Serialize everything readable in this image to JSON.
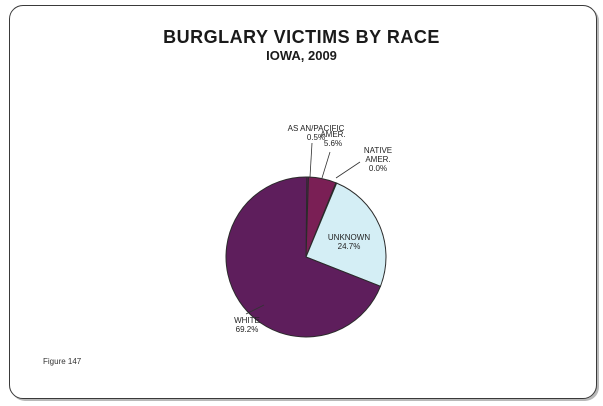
{
  "chart_data": {
    "type": "pie",
    "title": "BURGLARY VICTIMS BY RACE",
    "subtitle": "IOWA, 2009",
    "figure_label": "Figure 147",
    "slices": [
      {
        "label_lines": [
          "AS AN/PACIFIC",
          "0.5%"
        ],
        "value": 0.5,
        "color": "#5a1a55"
      },
      {
        "label_lines": [
          "AMER.",
          "5.6%"
        ],
        "value": 5.6,
        "color": "#7a1f55"
      },
      {
        "label_lines": [
          "NATIVE",
          "AMER.",
          "0.0%"
        ],
        "value": 0.0,
        "color": "#c4b4d6"
      },
      {
        "label_lines": [
          "UNKNOWN",
          "24.7%"
        ],
        "value": 24.7,
        "color": "#d4eef5"
      },
      {
        "label_lines": [
          "WHITE",
          "69.2%"
        ],
        "value": 69.2,
        "color": "#5e1e5c"
      }
    ]
  }
}
